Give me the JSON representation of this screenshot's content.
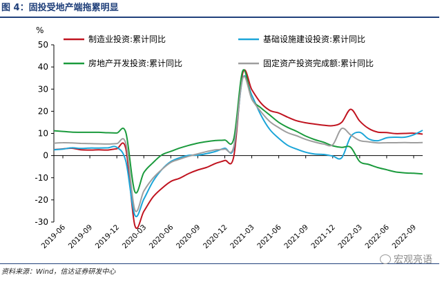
{
  "figure": {
    "title": "图 4：固投受地产端拖累明显",
    "source": "资料来源：Wind，信达证券研发中心",
    "watermark": "宏观亮语",
    "watermark_icon": "wechat-icon"
  },
  "chart_data": {
    "type": "line",
    "title": "",
    "xlabel": "",
    "ylabel": "%",
    "ylim": [
      -30,
      50
    ],
    "yticks": [
      -30,
      -20,
      -10,
      0,
      10,
      20,
      30,
      40,
      50
    ],
    "x_tick_labels": [
      "2019-06",
      "2019-09",
      "2019-12",
      "2020-03",
      "2020-06",
      "2020-09",
      "2020-12",
      "2021-03",
      "2021-06",
      "2021-09",
      "2021-12",
      "2022-03",
      "2022-06",
      "2022-09"
    ],
    "x": [
      "2019-05",
      "2019-06",
      "2019-07",
      "2019-08",
      "2019-09",
      "2019-10",
      "2019-11",
      "2019-12",
      "2020-01",
      "2020-02",
      "2020-03",
      "2020-04",
      "2020-05",
      "2020-06",
      "2020-07",
      "2020-08",
      "2020-09",
      "2020-10",
      "2020-11",
      "2020-12",
      "2021-01",
      "2021-02",
      "2021-03",
      "2021-04",
      "2021-05",
      "2021-06",
      "2021-07",
      "2021-08",
      "2021-09",
      "2021-10",
      "2021-11",
      "2021-12",
      "2022-01",
      "2022-02",
      "2022-03",
      "2022-04",
      "2022-05",
      "2022-06",
      "2022-07",
      "2022-08",
      "2022-09",
      "2022-10"
    ],
    "grid": false,
    "legend_position": "top",
    "series": [
      {
        "name": "制造业投资:累计同比",
        "color": "#c0131f",
        "values": [
          2.7,
          3.0,
          3.3,
          2.6,
          2.5,
          2.6,
          2.5,
          3.1,
          3.1,
          -31.5,
          -25.2,
          -18.8,
          -14.8,
          -11.7,
          -10.2,
          -8.1,
          -6.5,
          -5.3,
          -3.5,
          -2.2,
          -0.4,
          37.3,
          29.8,
          23.8,
          20.4,
          19.2,
          17.3,
          15.7,
          14.8,
          14.2,
          13.7,
          13.5,
          15.0,
          20.9,
          15.6,
          12.2,
          10.6,
          10.4,
          9.9,
          10.0,
          10.1,
          9.7
        ]
      },
      {
        "name": "基础设施建设投资:累计同比",
        "color": "#1ba5d8",
        "values": [
          2.6,
          2.9,
          3.5,
          3.2,
          3.4,
          3.4,
          3.5,
          3.7,
          -2.5,
          -26.9,
          -19.7,
          -11.8,
          -6.3,
          -2.7,
          -1.0,
          0.1,
          0.2,
          0.9,
          1.9,
          3.3,
          3.4,
          35.0,
          27.3,
          18.4,
          11.8,
          7.8,
          4.6,
          2.9,
          1.5,
          0.7,
          0.5,
          -0.2,
          -1.0,
          8.5,
          10.5,
          7.5,
          6.7,
          8.0,
          8.3,
          8.3,
          9.4,
          11.4
        ]
      },
      {
        "name": "房地产开发投资:累计同比",
        "color": "#1a9a3c",
        "values": [
          11.2,
          10.9,
          10.6,
          10.5,
          10.5,
          10.5,
          10.3,
          10.2,
          10.4,
          -16.3,
          -7.7,
          -3.3,
          0.3,
          1.9,
          3.4,
          4.6,
          5.6,
          6.3,
          6.8,
          7.0,
          7.6,
          38.3,
          25.6,
          21.6,
          18.3,
          15.0,
          12.7,
          10.9,
          8.8,
          7.2,
          6.0,
          4.4,
          3.7,
          3.7,
          -2.7,
          -4.0,
          -5.4,
          -6.4,
          -7.4,
          -7.8,
          -8.0,
          -8.3
        ]
      },
      {
        "name": "固定资产投资完成额:累计同比",
        "color": "#9e9e9e",
        "values": [
          5.6,
          5.8,
          5.7,
          5.5,
          5.4,
          5.3,
          5.2,
          5.4,
          5.4,
          -24.5,
          -16.1,
          -10.3,
          -6.3,
          -3.1,
          -1.6,
          -0.3,
          0.8,
          1.8,
          2.6,
          2.9,
          4.0,
          35.0,
          25.6,
          19.9,
          15.4,
          12.6,
          10.3,
          8.9,
          7.3,
          6.1,
          5.2,
          4.9,
          12.2,
          9.3,
          6.8,
          6.2,
          5.7,
          5.8,
          5.8,
          5.9,
          5.8,
          5.9
        ]
      }
    ]
  }
}
